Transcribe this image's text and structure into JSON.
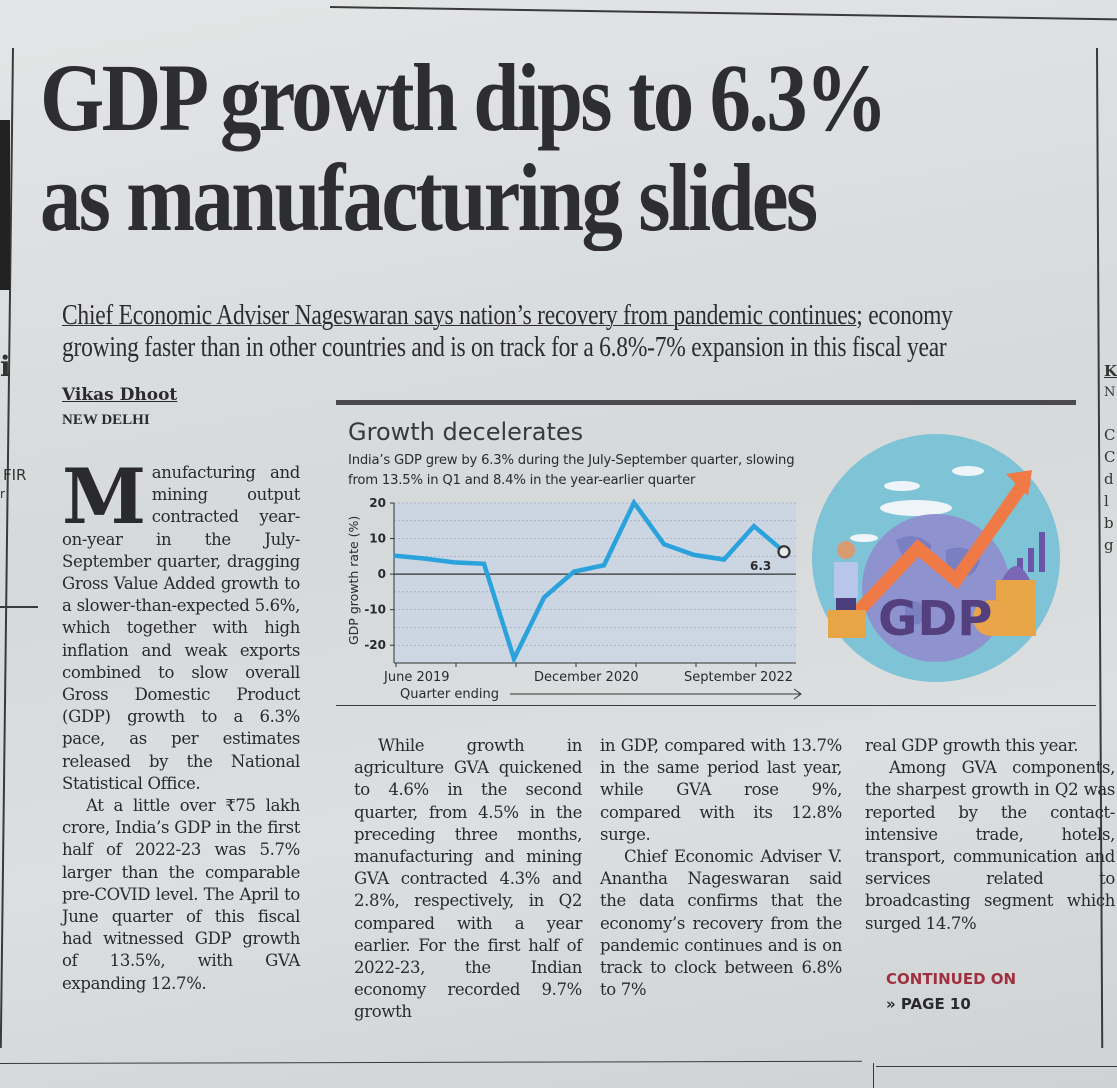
{
  "headline": {
    "line1": "GDP growth dips to 6.3%",
    "line2": "as manufacturing slides"
  },
  "deck": {
    "underlined_part": "Chief Economic Adviser Nageswaran says nation’s recovery from pandemic continues",
    "rest_line1": "; economy",
    "line2": "growing faster than in other countries and is on track for a 6.8%-7% expansion in this fiscal year"
  },
  "byline": {
    "author": "Vikas Dhoot",
    "dateline": "NEW DELHI"
  },
  "article": {
    "col1": {
      "dropcap": "M",
      "p1": "anufacturing and mining output contracted year-on-year in the July-September quarter, dragging Gross Value Added growth to a slower-than-expected 5.6%, which together with high inflation and weak exports combined to slow overall Gross Domestic Product (GDP) growth to a 6.3% pace, as per estimates released by the National Statistical Office.",
      "p2": "At a little over ₹75 lakh crore, India’s GDP in the first half of 2022-23 was 5.7% larger than the comparable pre-COVID level. The April to June quarter of this fiscal had witnessed GDP growth of 13.5%, with GVA expanding 12.7%."
    },
    "col2": {
      "p1": "While growth in agriculture GVA quickened to 4.6% in the second quarter, from 4.5% in the preceding three months, manufacturing and mining GVA contracted 4.3% and 2.8%, respectively, in Q2 compared with a year earlier. For the first half of 2022-23, the Indian economy recorded 9.7% growth"
    },
    "col3": {
      "p1": "in GDP, compared with 13.7% in the same period last year, while GVA rose 9%, compared with its 12.8% surge.",
      "p2": "Chief Economic Adviser V. Anantha Nageswaran said the data confirms that the economy’s recovery from the pandemic continues and is on track to clock between 6.8% to 7%"
    },
    "col4": {
      "p1": "real GDP growth this year.",
      "p2": "Among GVA components, the sharpest growth in Q2 was reported by the contact-intensive trade, hotels, transport, communication and services related to broadcasting segment which surged 14.7%"
    },
    "continued": {
      "label": "CONTINUED ON",
      "page": "» PAGE 10"
    }
  },
  "illustration": {
    "label": "GDP",
    "description": "globe with rising zig-zag arrow, man, coins and bar chart"
  },
  "side_fragments": {
    "left": [
      "i",
      "FIR",
      "r"
    ],
    "right": [
      "K",
      "N",
      "C",
      "C",
      "d",
      "l",
      "b",
      "g"
    ]
  },
  "colors": {
    "line": "#2aa3dc",
    "plot_bg": "#c8d4e4",
    "continued": "#a03040"
  },
  "chart_data": {
    "type": "line",
    "title": "Growth decelerates",
    "subtitle": "India’s GDP grew by 6.3% during the July-September quarter, slowing from 13.5% in Q1 and 8.4% in the year-earlier quarter",
    "xlabel": "Quarter ending",
    "ylabel": "GDP growth rate (%)",
    "x": [
      "Jun 2019",
      "Sep 2019",
      "Dec 2019",
      "Mar 2020",
      "Jun 2020",
      "Sep 2020",
      "Dec 2020",
      "Mar 2021",
      "Jun 2021",
      "Sep 2021",
      "Dec 2021",
      "Mar 2022",
      "Jun 2022",
      "Sep 2022"
    ],
    "x_tick_labels": [
      "June 2019",
      "December 2020",
      "September 2022"
    ],
    "series": [
      {
        "name": "GDP growth rate",
        "values": [
          5.2,
          4.4,
          3.3,
          2.9,
          -23.8,
          -6.6,
          0.7,
          2.5,
          20.1,
          8.4,
          5.4,
          4.1,
          13.5,
          6.3
        ]
      }
    ],
    "y_ticks": [
      20,
      10,
      0,
      -10,
      -20
    ],
    "ylim": [
      -25,
      20
    ],
    "annotation": "6.3",
    "grid": true,
    "legend": "none"
  }
}
